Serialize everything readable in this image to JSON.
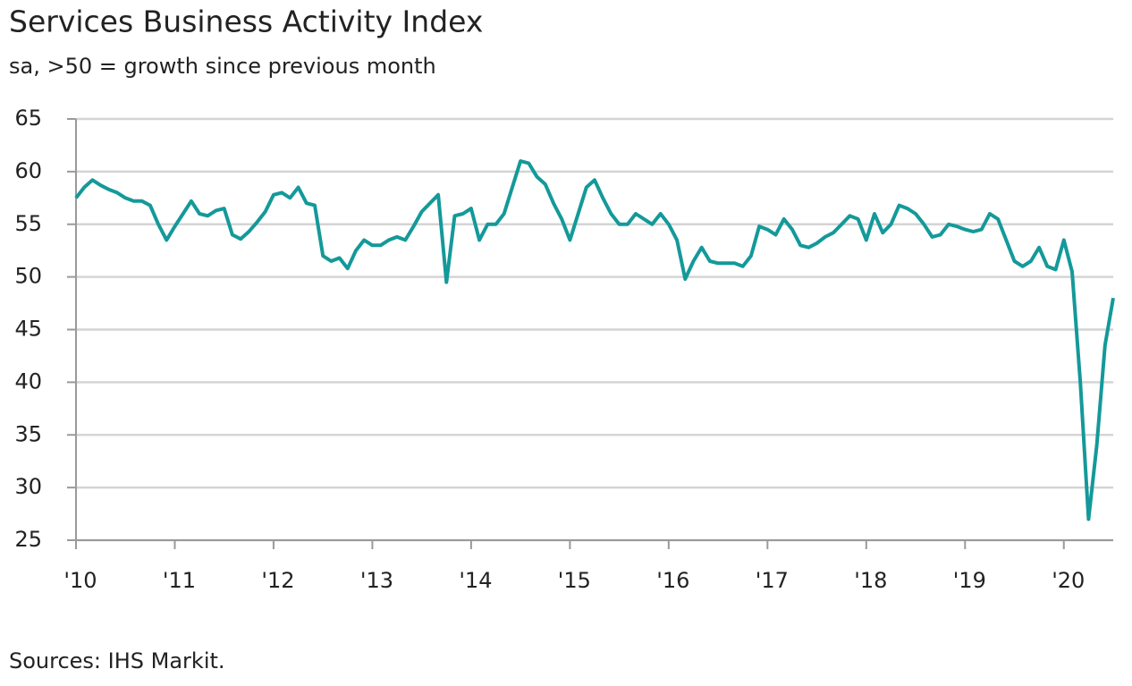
{
  "chart_data": {
    "type": "line",
    "title": "Services Business Activity Index",
    "subtitle": "sa, >50 = growth since previous month",
    "source": "Sources: IHS Markit.",
    "categories": [
      "'10",
      null,
      null,
      null,
      null,
      null,
      null,
      null,
      null,
      null,
      null,
      null,
      "'11",
      null,
      null,
      null,
      null,
      null,
      null,
      null,
      null,
      null,
      null,
      null,
      "'12",
      null,
      null,
      null,
      null,
      null,
      null,
      null,
      null,
      null,
      null,
      null,
      "'13",
      null,
      null,
      null,
      null,
      null,
      null,
      null,
      null,
      null,
      null,
      null,
      "'14",
      null,
      null,
      null,
      null,
      null,
      null,
      null,
      null,
      null,
      null,
      null,
      "'15",
      null,
      null,
      null,
      null,
      null,
      null,
      null,
      null,
      null,
      null,
      null,
      "'16",
      null,
      null,
      null,
      null,
      null,
      null,
      null,
      null,
      null,
      null,
      null,
      "'17",
      null,
      null,
      null,
      null,
      null,
      null,
      null,
      null,
      null,
      null,
      null,
      "'18",
      null,
      null,
      null,
      null,
      null,
      null,
      null,
      null,
      null,
      null,
      null,
      "'19",
      null,
      null,
      null,
      null,
      null,
      null,
      null,
      null,
      null,
      null,
      null,
      "'20",
      null,
      null,
      null,
      null,
      null,
      null
    ],
    "series": [
      {
        "name": "Services Business Activity Index",
        "color": "#14999a",
        "values": [
          57.5,
          58.5,
          59.2,
          58.7,
          58.3,
          58.0,
          57.5,
          57.2,
          57.2,
          56.8,
          55.0,
          53.5,
          54.8,
          56.0,
          57.2,
          56.0,
          55.8,
          56.3,
          56.5,
          54.0,
          53.6,
          54.3,
          55.2,
          56.2,
          57.8,
          58.0,
          57.5,
          58.5,
          57.0,
          56.8,
          52.0,
          51.5,
          51.8,
          50.8,
          52.5,
          53.5,
          53.0,
          53.0,
          53.5,
          53.8,
          53.5,
          54.8,
          56.2,
          57.0,
          57.8,
          49.5,
          55.8,
          56.0,
          56.5,
          53.5,
          55.0,
          55.0,
          56.0,
          58.5,
          61.0,
          60.8,
          59.5,
          58.8,
          57.0,
          55.5,
          53.5,
          56.0,
          58.5,
          59.2,
          57.5,
          56.0,
          55.0,
          55.0,
          56.0,
          55.5,
          55.0,
          56.0,
          55.0,
          53.5,
          49.8,
          51.5,
          52.8,
          51.5,
          51.3,
          51.3,
          51.3,
          51.0,
          52.0,
          54.8,
          54.5,
          54.0,
          55.5,
          54.5,
          53.0,
          52.8,
          53.2,
          53.8,
          54.2,
          55.0,
          55.8,
          55.5,
          53.5,
          56.0,
          54.2,
          55.0,
          56.8,
          56.5,
          56.0,
          55.0,
          53.8,
          54.0,
          55.0,
          54.8,
          54.5,
          54.3,
          54.5,
          56.0,
          55.5,
          53.5,
          51.5,
          51.0,
          51.5,
          52.8,
          51.0,
          50.7,
          53.5,
          50.5,
          40.0,
          27.0,
          34.0,
          43.5,
          48.0
        ]
      }
    ],
    "ylim": [
      25,
      65
    ],
    "yticks": [
      25,
      30,
      35,
      40,
      45,
      50,
      55,
      60,
      65
    ],
    "grid": true
  }
}
